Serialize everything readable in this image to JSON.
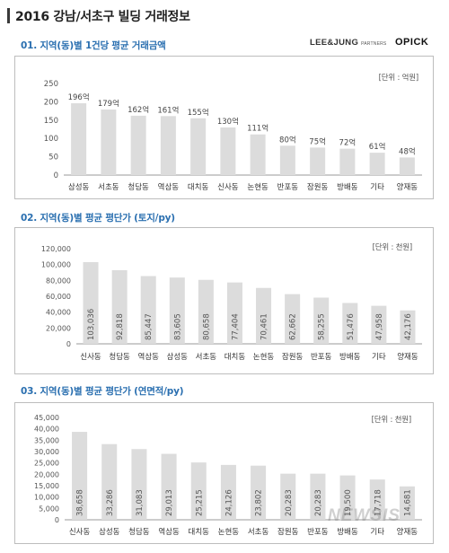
{
  "header": {
    "title": "2016 강남/서초구 빌딩 거래정보"
  },
  "logos": {
    "brand_a": "LEE&JUNG",
    "brand_a_sub": "PARTNERS",
    "brand_b": "OPICK"
  },
  "watermark": "NEWSIS",
  "chart_data": [
    {
      "type": "bar",
      "title": "01. 지역(동)별 1건당 평균 거래금액",
      "unit": "[단위 : 억원]",
      "categories": [
        "삼성동",
        "서초동",
        "청담동",
        "역삼동",
        "대치동",
        "신사동",
        "논현동",
        "반포동",
        "잠원동",
        "방배동",
        "기타",
        "양재동"
      ],
      "values": [
        196,
        179,
        162,
        161,
        155,
        130,
        111,
        80,
        75,
        72,
        61,
        48
      ],
      "labels": [
        "196억",
        "179억",
        "162억",
        "161억",
        "155억",
        "130억",
        "111억",
        "80억",
        "75억",
        "72억",
        "61억",
        "48억"
      ],
      "ylim": [
        0,
        250
      ],
      "yticks": [
        "0",
        "50",
        "100",
        "150",
        "200",
        "250"
      ],
      "label_position": "top"
    },
    {
      "type": "bar",
      "title": "02. 지역(동)별 평균 평단가 (토지/py)",
      "unit": "[단위 : 천원]",
      "categories": [
        "신사동",
        "청담동",
        "역삼동",
        "삼성동",
        "서초동",
        "대치동",
        "논현동",
        "잠원동",
        "반포동",
        "방배동",
        "기타",
        "양재동"
      ],
      "values": [
        103036,
        92818,
        85447,
        83605,
        80658,
        77404,
        70461,
        62662,
        58255,
        51476,
        47958,
        42176
      ],
      "labels": [
        "103,036",
        "92,818",
        "85,447",
        "83,605",
        "80,658",
        "77,404",
        "70,461",
        "62,662",
        "58,255",
        "51,476",
        "47,958",
        "42,176"
      ],
      "ylim": [
        0,
        120000
      ],
      "yticks": [
        "0",
        "20,000",
        "40,000",
        "60,000",
        "80,000",
        "100,000",
        "120,000"
      ],
      "label_position": "inside-vertical"
    },
    {
      "type": "bar",
      "title": "03. 지역(동)별 평균 평단가 (연면적/py)",
      "unit": "[단위 : 천원]",
      "categories": [
        "신사동",
        "삼성동",
        "청담동",
        "역삼동",
        "대치동",
        "논현동",
        "서초동",
        "잠원동",
        "반포동",
        "방배동",
        "기타",
        "양재동"
      ],
      "values": [
        38658,
        33286,
        31083,
        29013,
        25215,
        24126,
        23802,
        20283,
        20283,
        19500,
        17718,
        14681
      ],
      "labels": [
        "38,658",
        "33,286",
        "31,083",
        "29,013",
        "25,215",
        "24,126",
        "23,802",
        "20,283",
        "20,283",
        "19,500",
        "17,718",
        "14,681"
      ],
      "ylim": [
        0,
        45000
      ],
      "yticks": [
        "0",
        "5,000",
        "10,000",
        "15,000",
        "20,000",
        "25,000",
        "30,000",
        "35,000",
        "40,000",
        "45,000"
      ],
      "label_position": "inside-vertical"
    }
  ],
  "colors": {
    "bar": "#dcdcdc",
    "axis": "#999999",
    "title": "#2a6fb0"
  }
}
